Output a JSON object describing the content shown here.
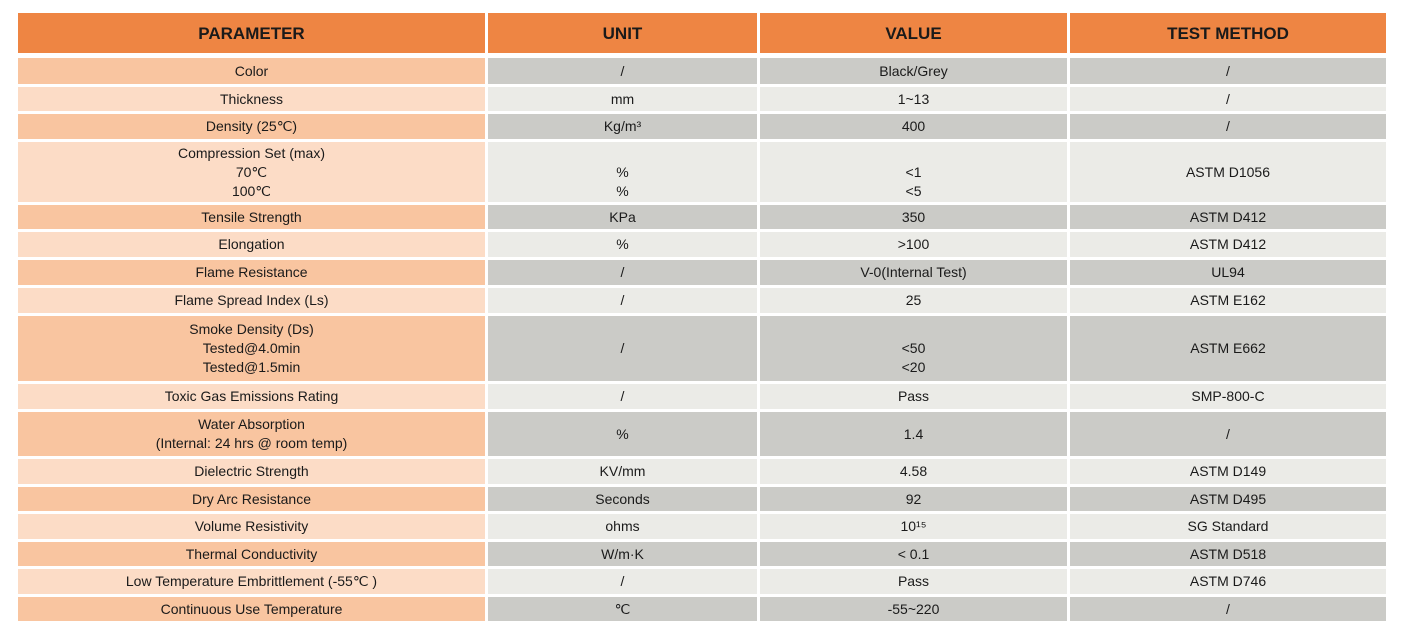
{
  "headers": [
    "PARAMETER",
    "UNIT",
    "VALUE",
    "TEST METHOD"
  ],
  "colors": {
    "header": "#ee8543",
    "param_dark": "#f9c5a0",
    "param_light": "#fcdcc6",
    "grey_dark": "#cbcbc7",
    "grey_light": "#ebebe7"
  },
  "rows": [
    [
      "Color",
      "/",
      "Black/Grey",
      "/"
    ],
    [
      "Thickness",
      "mm",
      "1~13",
      "/"
    ],
    [
      "Density (25℃)",
      "Kg/m³",
      "400",
      "/"
    ],
    [
      "Compression Set (max)\n70℃\n100℃",
      "\n%\n%",
      "\n<1\n<5",
      "ASTM D1056"
    ],
    [
      "Tensile Strength",
      "KPa",
      "350",
      "ASTM D412"
    ],
    [
      "Elongation",
      "%",
      ">100",
      "ASTM D412"
    ],
    [
      "Flame Resistance",
      "/",
      "V-0(Internal Test)",
      "UL94"
    ],
    [
      "Flame Spread Index (Ls)",
      "/",
      "25",
      "ASTM E162"
    ],
    [
      "Smoke Density (Ds)\nTested@4.0min\nTested@1.5min",
      "/",
      "\n<50\n<20",
      "ASTM E662"
    ],
    [
      "Toxic Gas Emissions Rating",
      "/",
      "Pass",
      "SMP-800-C"
    ],
    [
      "Water Absorption\n(Internal: 24 hrs @ room temp)",
      "%",
      "1.4",
      "/"
    ],
    [
      "Dielectric Strength",
      "KV/mm",
      "4.58",
      "ASTM D149"
    ],
    [
      "Dry Arc Resistance",
      "Seconds",
      "92",
      "ASTM D495"
    ],
    [
      "Volume Resistivity",
      "ohms",
      "10¹⁵",
      "SG Standard"
    ],
    [
      "Thermal Conductivity",
      "W/m·K",
      "< 0.1",
      "ASTM D518"
    ],
    [
      "Low Temperature Embrittlement (-55℃ )",
      "/",
      "Pass",
      "ASTM D746"
    ],
    [
      "Continuous Use Temperature",
      "℃",
      "-55~220",
      "/"
    ]
  ]
}
